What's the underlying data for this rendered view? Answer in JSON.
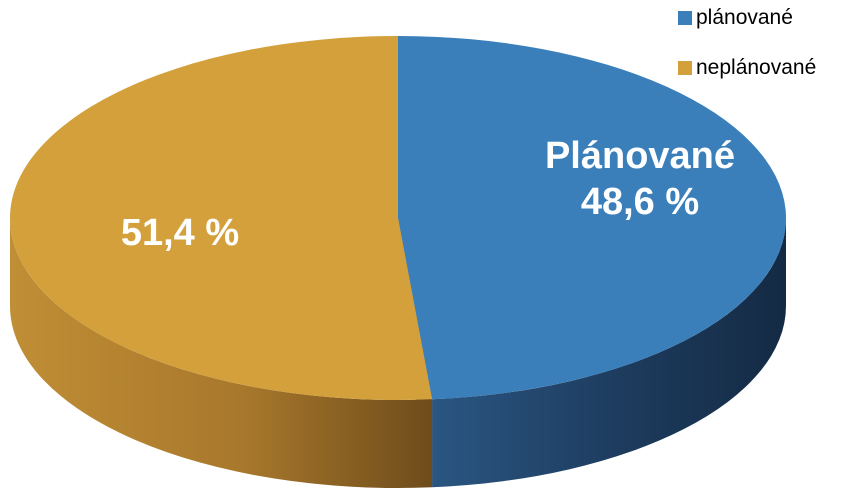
{
  "chart_data": {
    "type": "pie",
    "title": "",
    "three_d": true,
    "legend_position": "top-right",
    "series": [
      {
        "name": "plánované",
        "value": 48.6,
        "color": "#3a7fba",
        "side_color": "#1d3a5c",
        "label_lines": [
          "Plánované",
          "48,6 %"
        ]
      },
      {
        "name": "neplánované",
        "value": 51.4,
        "color": "#d4a03b",
        "side_color": "#8a6224",
        "label_lines": [
          "51,4 %"
        ]
      }
    ]
  }
}
